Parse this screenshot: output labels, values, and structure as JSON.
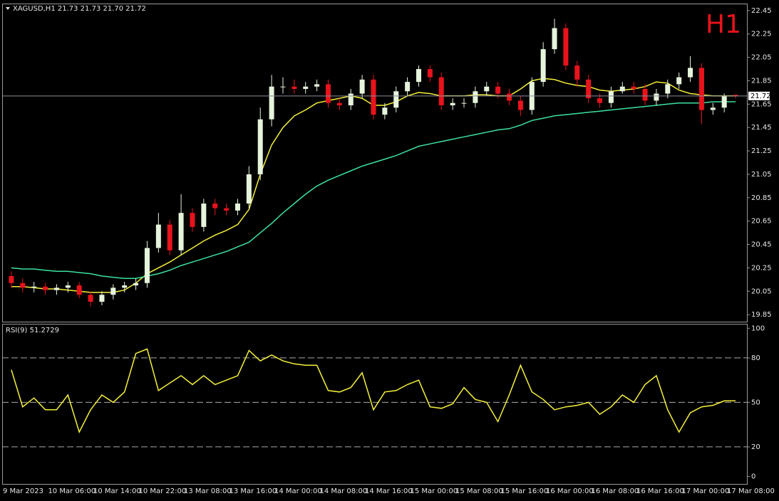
{
  "chart_data": [
    {
      "type": "candlestick",
      "title": "XAGUSD,H1  21.73 21.73 21.70 21.72",
      "timeframe": "H1",
      "categories": [
        "9 Mar 2023",
        null,
        null,
        null,
        "10 Mar 06:00",
        null,
        null,
        null,
        "10 Mar 14:00",
        null,
        null,
        null,
        "10 Mar 22:00",
        null,
        null,
        null,
        "13 Mar 08:00",
        null,
        null,
        null,
        "13 Mar 16:00",
        null,
        null,
        null,
        "14 Mar 00:00",
        null,
        null,
        null,
        "14 Mar 08:00",
        null,
        null,
        null,
        "14 Mar 16:00",
        null,
        null,
        null,
        "15 Mar 00:00",
        null,
        null,
        null,
        "15 Mar 08:00",
        null,
        null,
        null,
        "15 Mar 16:00",
        null,
        null,
        null,
        "16 Mar 00:00",
        null,
        null,
        null,
        "16 Mar 08:00",
        null,
        null,
        null,
        "16 Mar 16:00",
        null,
        null,
        null,
        "17 Mar 00:00",
        null,
        null,
        null,
        "17 Mar 08:00"
      ],
      "open": [
        20.18,
        20.12,
        20.08,
        20.09,
        20.06,
        20.08,
        20.1,
        20.02,
        19.96,
        20.02,
        20.08,
        20.1,
        20.12,
        20.42,
        20.62,
        20.4,
        20.72,
        20.6,
        20.8,
        20.76,
        20.74,
        20.8,
        21.05,
        21.52,
        21.8,
        21.8,
        21.78,
        21.8,
        21.82,
        21.66,
        21.64,
        21.74,
        21.86,
        21.56,
        21.62,
        21.76,
        21.84,
        21.95,
        21.88,
        21.64,
        21.66,
        21.66,
        21.76,
        21.8,
        21.74,
        21.68,
        21.6,
        21.84,
        22.12,
        22.3,
        21.98,
        21.86,
        21.7,
        21.66,
        21.76,
        21.8,
        21.78,
        21.68,
        21.74,
        21.82,
        21.88,
        21.96,
        21.6,
        21.62,
        21.73
      ],
      "high": [
        20.22,
        20.16,
        20.13,
        20.12,
        20.11,
        20.13,
        20.13,
        20.05,
        20.05,
        20.11,
        20.13,
        20.16,
        20.48,
        20.72,
        20.66,
        20.88,
        20.76,
        20.84,
        20.84,
        20.8,
        20.84,
        21.12,
        21.62,
        21.9,
        21.88,
        21.86,
        21.84,
        21.86,
        21.86,
        21.7,
        21.78,
        21.9,
        21.9,
        21.66,
        21.8,
        21.88,
        21.98,
        21.98,
        21.92,
        21.7,
        21.7,
        21.8,
        21.84,
        21.84,
        21.78,
        21.72,
        21.88,
        22.18,
        22.38,
        22.34,
        22.02,
        21.9,
        21.74,
        21.8,
        21.84,
        21.84,
        21.82,
        21.78,
        21.86,
        21.92,
        22.06,
        22.0,
        21.66,
        21.74,
        21.73
      ],
      "low": [
        20.08,
        20.04,
        20.04,
        20.02,
        20.02,
        20.04,
        19.99,
        19.92,
        19.93,
        19.98,
        20.04,
        20.06,
        20.08,
        20.38,
        20.36,
        20.36,
        20.56,
        20.56,
        20.7,
        20.7,
        20.7,
        20.76,
        21.0,
        21.46,
        21.74,
        21.74,
        21.74,
        21.76,
        21.62,
        21.6,
        21.6,
        21.7,
        21.52,
        21.52,
        21.58,
        21.72,
        21.8,
        21.84,
        21.6,
        21.6,
        21.62,
        21.62,
        21.72,
        21.7,
        21.64,
        21.55,
        21.56,
        21.8,
        22.08,
        21.94,
        21.8,
        21.66,
        21.62,
        21.62,
        21.74,
        21.74,
        21.64,
        21.64,
        21.7,
        21.78,
        21.84,
        21.48,
        21.56,
        21.58,
        21.7
      ],
      "close": [
        20.12,
        20.08,
        20.09,
        20.06,
        20.08,
        20.1,
        20.02,
        19.96,
        20.02,
        20.08,
        20.1,
        20.12,
        20.42,
        20.62,
        20.4,
        20.72,
        20.6,
        20.8,
        20.76,
        20.74,
        20.8,
        21.05,
        21.52,
        21.8,
        21.8,
        21.78,
        21.8,
        21.82,
        21.66,
        21.64,
        21.74,
        21.86,
        21.56,
        21.62,
        21.76,
        21.84,
        21.95,
        21.88,
        21.64,
        21.66,
        21.66,
        21.76,
        21.8,
        21.74,
        21.68,
        21.6,
        21.84,
        22.12,
        22.3,
        21.98,
        21.86,
        21.7,
        21.66,
        21.76,
        21.8,
        21.78,
        21.68,
        21.74,
        21.82,
        21.88,
        21.96,
        21.6,
        21.62,
        21.72,
        21.72
      ],
      "up_color": "#e6f4dc",
      "down_color": "#e8131b",
      "overlays": [
        {
          "color": "#f5f03a",
          "values": [
            20.09,
            20.09,
            20.08,
            20.07,
            20.07,
            20.06,
            20.05,
            20.04,
            20.04,
            20.04,
            20.06,
            20.12,
            20.2,
            20.25,
            20.3,
            20.36,
            20.42,
            20.48,
            20.53,
            20.57,
            20.62,
            20.75,
            21.05,
            21.3,
            21.45,
            21.55,
            21.6,
            21.66,
            21.68,
            21.7,
            21.72,
            21.7,
            21.64,
            21.64,
            21.67,
            21.72,
            21.75,
            21.74,
            21.72,
            21.72,
            21.72,
            21.73,
            21.73,
            21.72,
            21.72,
            21.78,
            21.85,
            21.87,
            21.86,
            21.83,
            21.81,
            21.8,
            21.77,
            21.76,
            21.77,
            21.78,
            21.8,
            21.84,
            21.83,
            21.77,
            21.74,
            21.73,
            21.72,
            21.72,
            21.72
          ]
        },
        {
          "color": "#3ee0a0",
          "values": [
            20.25,
            20.24,
            20.24,
            20.23,
            20.22,
            20.22,
            20.21,
            20.2,
            20.18,
            20.17,
            20.16,
            20.16,
            20.18,
            20.2,
            20.23,
            20.27,
            20.3,
            20.33,
            20.36,
            20.39,
            20.43,
            20.47,
            20.55,
            20.63,
            20.72,
            20.8,
            20.88,
            20.95,
            21.0,
            21.04,
            21.08,
            21.12,
            21.15,
            21.18,
            21.21,
            21.25,
            21.29,
            21.31,
            21.33,
            21.35,
            21.37,
            21.39,
            21.41,
            21.43,
            21.44,
            21.47,
            21.51,
            21.53,
            21.55,
            21.56,
            21.57,
            21.58,
            21.59,
            21.6,
            21.61,
            21.62,
            21.63,
            21.64,
            21.65,
            21.66,
            21.66,
            21.66,
            21.67,
            21.67,
            21.67
          ]
        }
      ],
      "current_price": 21.72,
      "ylim": [
        19.79,
        22.51
      ],
      "yticks": [
        19.85,
        20.05,
        20.25,
        20.45,
        20.65,
        20.85,
        21.05,
        21.25,
        21.45,
        21.65,
        21.85,
        22.05,
        22.25,
        22.45
      ]
    },
    {
      "type": "line",
      "title": "RSI(9) 51.2729",
      "color": "#f5f03a",
      "values": [
        72,
        47,
        53,
        45,
        45,
        55,
        30,
        45,
        55,
        50,
        57,
        83,
        86,
        58,
        63,
        68,
        62,
        68,
        62,
        65,
        68,
        85,
        78,
        82,
        78,
        76,
        75,
        75,
        58,
        57,
        60,
        70,
        45,
        57,
        58,
        62,
        65,
        47,
        46,
        49,
        60,
        52,
        50,
        37,
        55,
        75,
        57,
        52,
        45,
        47,
        48,
        50,
        42,
        47,
        55,
        50,
        62,
        68,
        45,
        30,
        43,
        47,
        48,
        51,
        51
      ],
      "levels": [
        20,
        50,
        80
      ],
      "ylim": [
        -5,
        103
      ],
      "yticks": [
        0,
        20,
        50,
        80,
        100
      ]
    }
  ]
}
